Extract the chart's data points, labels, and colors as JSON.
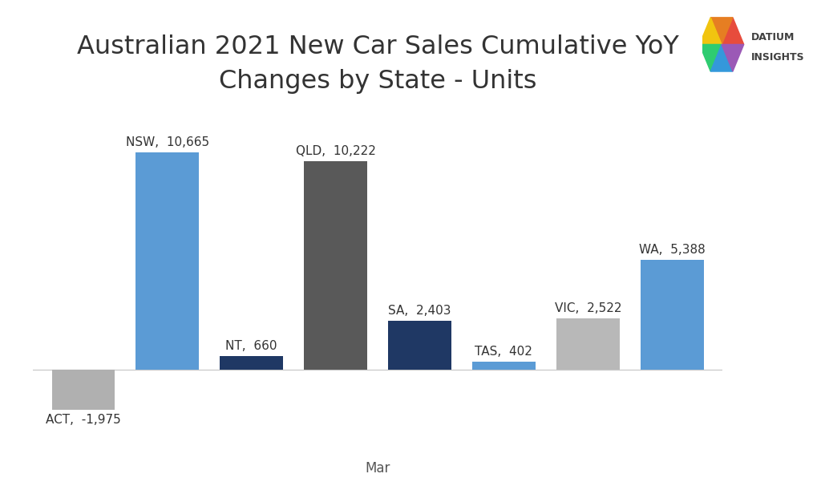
{
  "title_line1": "Australian 2021 New Car Sales Cumulative YoY",
  "title_line2": "Changes by State - Units",
  "xlabel": "Mar",
  "categories": [
    "ACT",
    "NSW",
    "NT",
    "QLD",
    "SA",
    "TAS",
    "VIC",
    "WA"
  ],
  "values": [
    -1975,
    10665,
    660,
    10222,
    2403,
    402,
    2522,
    5388
  ],
  "bar_colors": [
    "#b0b0b0",
    "#5b9bd5",
    "#1f3864",
    "#595959",
    "#1f3864",
    "#5b9bd5",
    "#b8b8b8",
    "#5b9bd5"
  ],
  "label_texts": [
    "ACT,  -1,975",
    "NSW,  10,665",
    "NT,  660",
    "QLD,  10,222",
    "SA,  2,403",
    "TAS,  402",
    "VIC,  2,522",
    "WA,  5,388"
  ],
  "background_color": "#ffffff",
  "title_fontsize": 23,
  "label_fontsize": 11,
  "xlabel_fontsize": 12,
  "ylim": [
    -3200,
    12800
  ],
  "bar_width": 0.75
}
